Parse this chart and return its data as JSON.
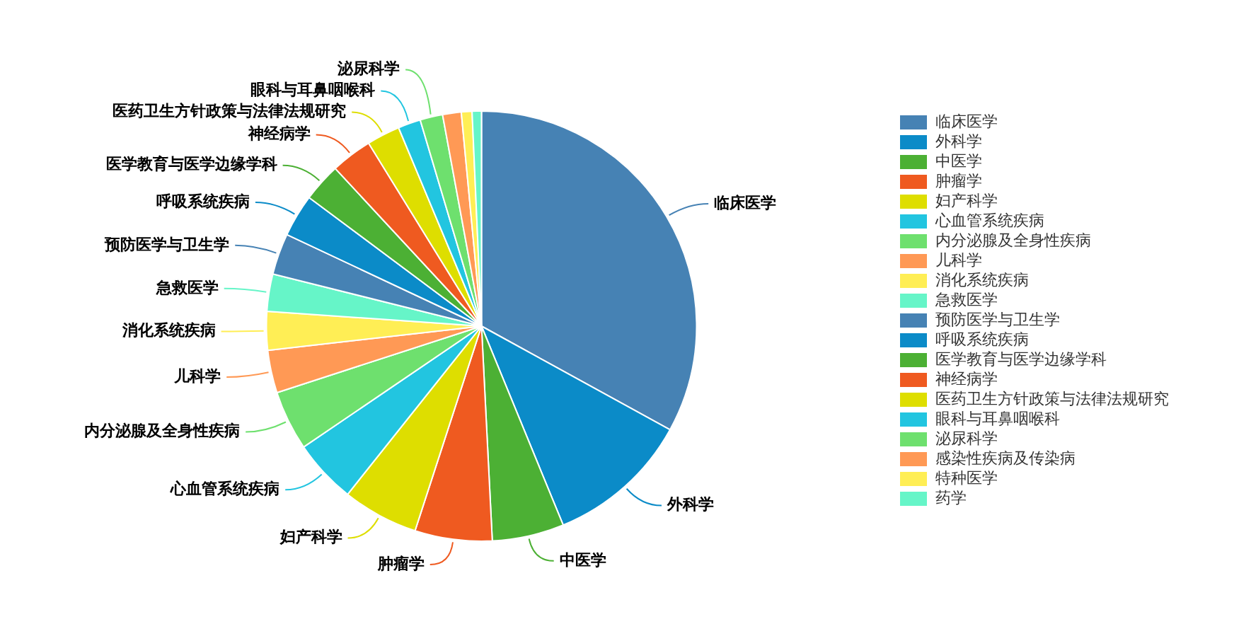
{
  "chart_data": {
    "type": "pie",
    "categories": [
      "临床医学",
      "外科学",
      "中医学",
      "肿瘤学",
      "妇产科学",
      "心血管系统疾病",
      "内分泌腺及全身性疾病",
      "儿科学",
      "消化系统疾病",
      "急救医学",
      "预防医学与卫生学",
      "呼吸系统疾病",
      "医学教育与医学边缘学科",
      "神经病学",
      "医药卫生方针政策与法律法规研究",
      "眼科与耳鼻咽喉科",
      "泌尿科学",
      "感染性疾病及传染病",
      "特种医学",
      "药学"
    ],
    "values": [
      33.0,
      10.8,
      5.4,
      5.8,
      5.7,
      4.8,
      4.5,
      3.2,
      2.9,
      2.8,
      3.1,
      3.2,
      2.9,
      3.1,
      2.5,
      1.7,
      1.7,
      1.4,
      0.8,
      0.7
    ],
    "colors": [
      "#4682b4",
      "#0b8bc8",
      "#4cb034",
      "#ef5a20",
      "#dede00",
      "#22c5e0",
      "#6ee06e",
      "#ff9955",
      "#ffee55",
      "#66f5c8",
      "#4682b4",
      "#0b8bc8",
      "#4cb034",
      "#ef5a20",
      "#dede00",
      "#22c5e0",
      "#6ee06e",
      "#ff9955",
      "#ffee55",
      "#66f5c8"
    ],
    "legend": "top right"
  }
}
